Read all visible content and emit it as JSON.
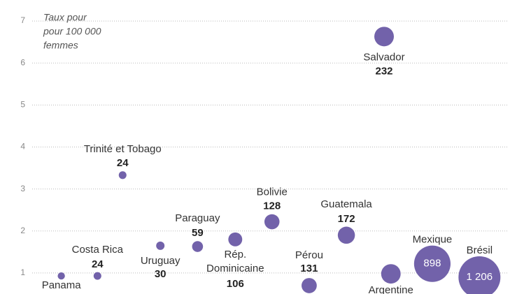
{
  "chart_data": {
    "type": "bubble",
    "ylabel": [
      "Taux pour",
      "pour 100 000",
      "femmes"
    ],
    "ylim": [
      0.5,
      7.5
    ],
    "yticks": [
      1,
      2,
      3,
      4,
      5,
      6,
      7
    ],
    "grid": true,
    "xlim": [
      0,
      100
    ],
    "color": "#7262aa",
    "labels": [
      "Salvador",
      "Trinité et Tobago",
      "Bolivie",
      "Guatemala",
      "Paraguay",
      "Uruguay",
      "Rép. Dominicaine",
      "Costa Rica",
      "Panama",
      "Pérou",
      "Argentine",
      "Mexique",
      "Brésil"
    ],
    "x": [
      73.3,
      23.4,
      51.9,
      66.1,
      37.7,
      30.6,
      44.9,
      18.6,
      11.7,
      59.0,
      74.6,
      82.5,
      91.5
    ],
    "values": [
      6.63,
      3.33,
      2.22,
      1.9,
      1.63,
      1.65,
      1.8,
      0.93,
      0.93,
      0.7,
      0.98,
      1.22,
      0.9
    ],
    "sizes": [
      232,
      24,
      128,
      172,
      59,
      30,
      106,
      24,
      20,
      131,
      230,
      898,
      1206
    ],
    "size_labels": [
      "232",
      "24",
      "128",
      "172",
      "59",
      "30",
      "106",
      "24",
      null,
      "131",
      null,
      "898",
      "1 206"
    ]
  }
}
